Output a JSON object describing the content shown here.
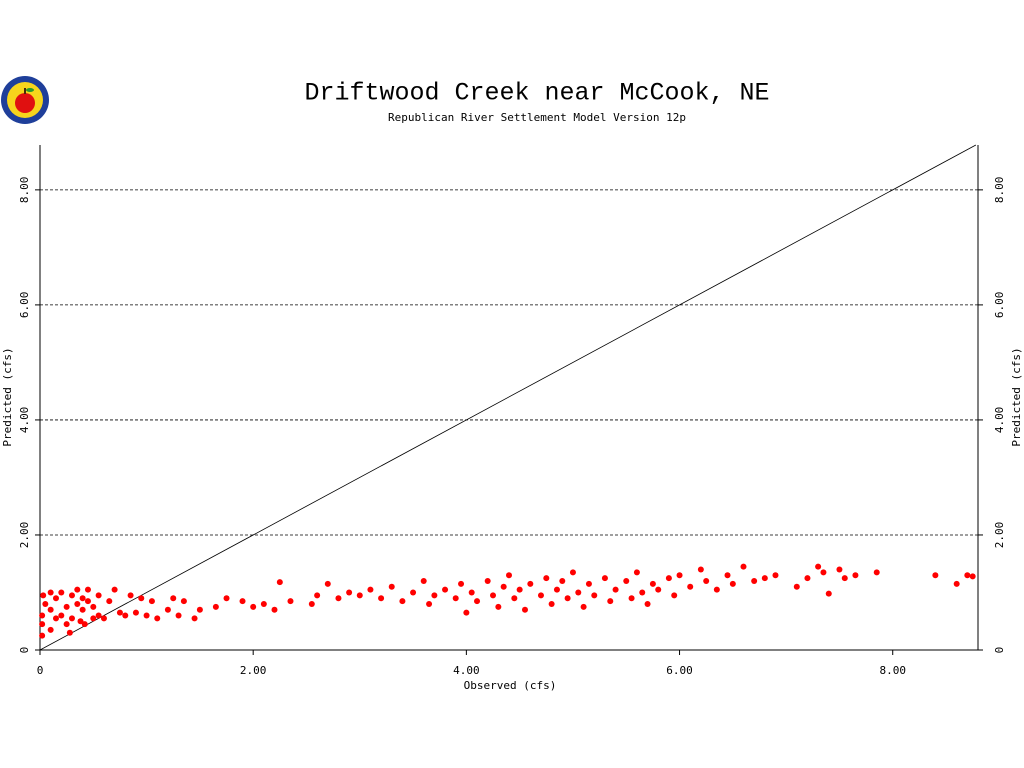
{
  "chart_data": {
    "type": "scatter",
    "title": "Driftwood Creek near McCook, NE",
    "subtitle": "Republican River Settlement Model Version 12p",
    "x_label": "Observed (cfs)",
    "y_label": "Predicted (cfs)",
    "xlim": [
      0,
      8.8
    ],
    "ylim": [
      0,
      8.78
    ],
    "xticks": [
      0,
      {
        "value": 2,
        "label": "2.00"
      },
      {
        "value": 4,
        "label": "4.00"
      },
      {
        "value": 6,
        "label": "6.00"
      },
      {
        "value": 8,
        "label": "8.00"
      }
    ],
    "yticks": [
      0,
      {
        "value": 2,
        "label": "2.00"
      },
      {
        "value": 4,
        "label": "4.00"
      },
      {
        "value": 6,
        "label": "6.00"
      },
      {
        "value": 8,
        "label": "8.00"
      }
    ],
    "grid": true,
    "reference_line": true,
    "color": "#ff0000",
    "x": [
      0.02,
      0.02,
      0.02,
      0.03,
      0.05,
      0.1,
      0.1,
      0.1,
      0.15,
      0.15,
      0.2,
      0.2,
      0.25,
      0.25,
      0.28,
      0.3,
      0.3,
      0.35,
      0.35,
      0.38,
      0.4,
      0.4,
      0.42,
      0.45,
      0.45,
      0.5,
      0.5,
      0.55,
      0.55,
      0.6,
      0.65,
      0.7,
      0.75,
      0.8,
      0.85,
      0.9,
      0.95,
      1.0,
      1.05,
      1.1,
      1.2,
      1.25,
      1.3,
      1.35,
      1.45,
      1.5,
      1.65,
      1.75,
      1.9,
      2.0,
      2.1,
      2.2,
      2.25,
      2.35,
      2.55,
      2.6,
      2.7,
      2.8,
      2.9,
      3.0,
      3.1,
      3.2,
      3.3,
      3.4,
      3.5,
      3.6,
      3.65,
      3.7,
      3.8,
      3.9,
      3.95,
      4.0,
      4.05,
      4.1,
      4.2,
      4.25,
      4.3,
      4.35,
      4.4,
      4.45,
      4.5,
      4.55,
      4.6,
      4.7,
      4.75,
      4.8,
      4.85,
      4.9,
      4.95,
      5.0,
      5.05,
      5.1,
      5.15,
      5.2,
      5.3,
      5.35,
      5.4,
      5.5,
      5.55,
      5.6,
      5.65,
      5.7,
      5.75,
      5.8,
      5.9,
      5.95,
      6.0,
      6.1,
      6.2,
      6.25,
      6.35,
      6.45,
      6.5,
      6.6,
      6.7,
      6.8,
      6.9,
      7.1,
      7.2,
      7.3,
      7.35,
      7.4,
      7.5,
      7.55,
      7.65,
      7.85,
      8.4,
      8.6,
      8.7,
      8.75
    ],
    "values": [
      0.25,
      0.45,
      0.6,
      0.95,
      0.8,
      0.35,
      0.7,
      1.0,
      0.55,
      0.9,
      0.6,
      1.0,
      0.45,
      0.75,
      0.3,
      0.95,
      0.55,
      0.8,
      1.05,
      0.5,
      0.7,
      0.9,
      0.45,
      0.85,
      1.05,
      0.55,
      0.75,
      0.6,
      0.95,
      0.55,
      0.85,
      1.05,
      0.65,
      0.6,
      0.95,
      0.65,
      0.9,
      0.6,
      0.85,
      0.55,
      0.7,
      0.9,
      0.6,
      0.85,
      0.55,
      0.7,
      0.75,
      0.9,
      0.85,
      0.75,
      0.8,
      0.7,
      1.18,
      0.85,
      0.8,
      0.95,
      1.15,
      0.9,
      1.0,
      0.95,
      1.05,
      0.9,
      1.1,
      0.85,
      1.0,
      1.2,
      0.8,
      0.95,
      1.05,
      0.9,
      1.15,
      0.65,
      1.0,
      0.85,
      1.2,
      0.95,
      0.75,
      1.1,
      1.3,
      0.9,
      1.05,
      0.7,
      1.15,
      0.95,
      1.25,
      0.8,
      1.05,
      1.2,
      0.9,
      1.35,
      1.0,
      0.75,
      1.15,
      0.95,
      1.25,
      0.85,
      1.05,
      1.2,
      0.9,
      1.35,
      1.0,
      0.8,
      1.15,
      1.05,
      1.25,
      0.95,
      1.3,
      1.1,
      1.4,
      1.2,
      1.05,
      1.3,
      1.15,
      1.45,
      1.2,
      1.25,
      1.3,
      1.1,
      1.25,
      1.45,
      1.35,
      0.98,
      1.4,
      1.25,
      1.3,
      1.35,
      1.3,
      1.15,
      1.3,
      1.28
    ]
  }
}
